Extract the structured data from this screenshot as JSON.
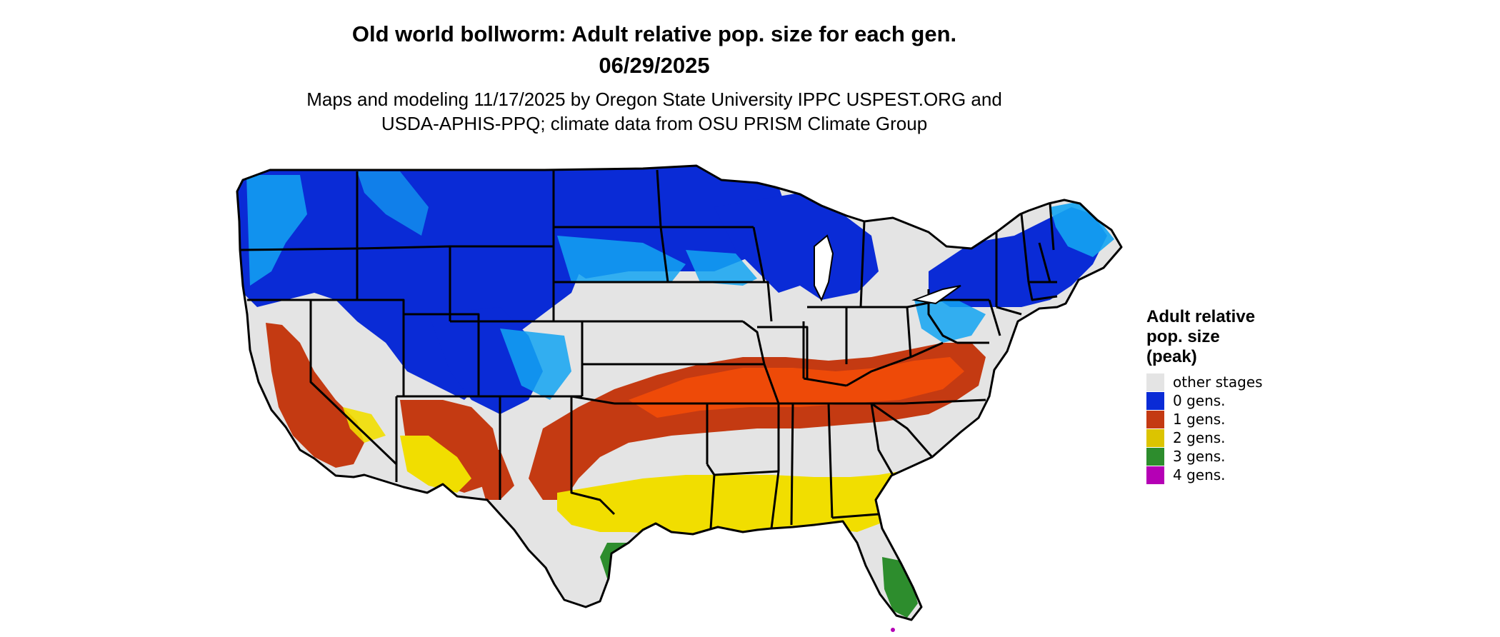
{
  "title": {
    "line1": "Old world bollworm: Adult relative pop. size for each gen.",
    "line2": "06/29/2025"
  },
  "subtitle": {
    "line1": "Maps and modeling 11/17/2025 by Oregon State University IPPC USPEST.ORG and",
    "line2": "USDA-APHIS-PPQ; climate data from OSU PRISM Climate Group"
  },
  "colors": {
    "other_stages": "#e4e4e4",
    "gen0_dark": "#0a2bd6",
    "gen0_light": "#13a4f2",
    "gen1": "#c43a12",
    "gen1_bright": "#ee4a08",
    "gen2": "#f1de00",
    "gen3": "#2d8d2d",
    "gen4": "#b500b5",
    "border": "#000000"
  },
  "legend": {
    "title_line1": "Adult relative",
    "title_line2": "pop. size",
    "title_line3": "(peak)",
    "items": [
      {
        "label": "other stages",
        "color": "#e4e4e4"
      },
      {
        "label": "0 gens.",
        "color": "#0a2bd6"
      },
      {
        "label": "1 gens.",
        "color": "#c43a12"
      },
      {
        "label": "2 gens.",
        "color": "#dcc400"
      },
      {
        "label": "3 gens.",
        "color": "#2d8d2d"
      },
      {
        "label": "4 gens.",
        "color": "#b500b5"
      }
    ]
  }
}
